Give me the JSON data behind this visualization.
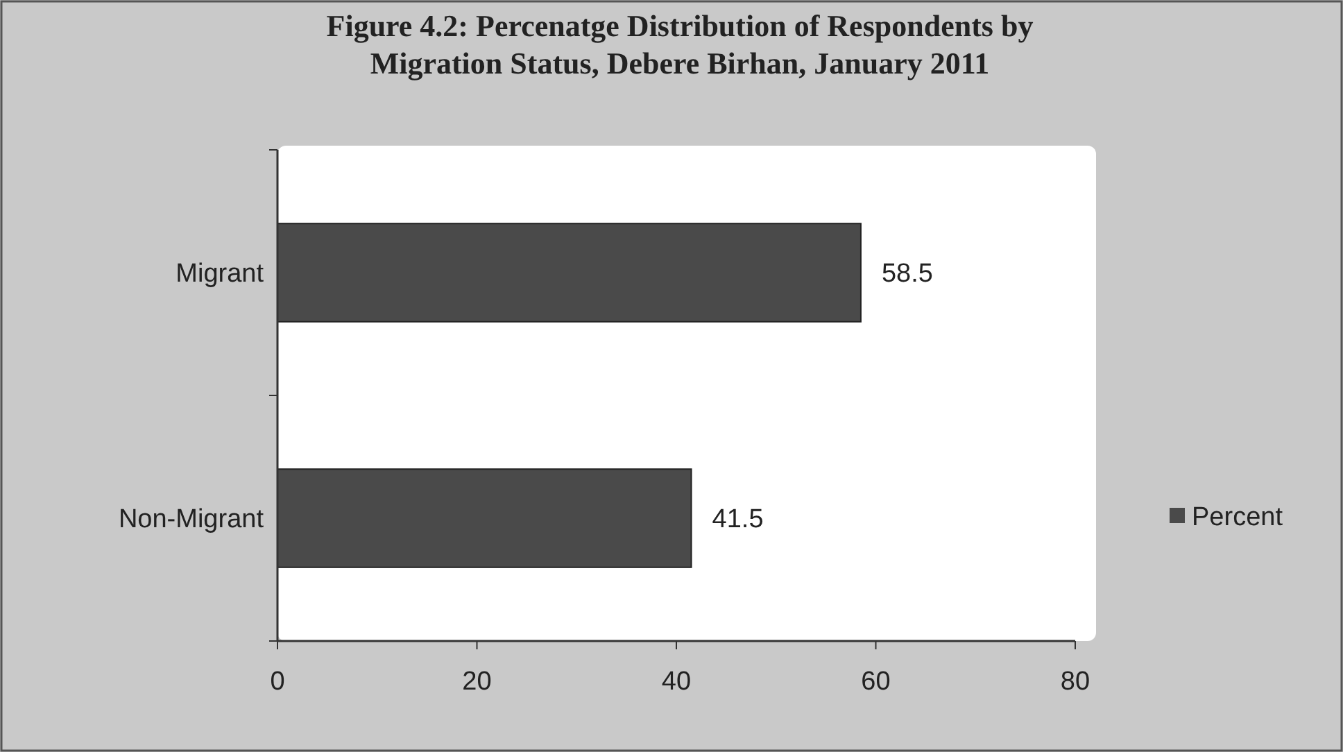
{
  "chart_data": {
    "type": "bar",
    "orientation": "horizontal",
    "title": "Figure 4.2: Percenatge Distribution of Respondents by\nMigration Status,  Debere Birhan, January 2011",
    "categories": [
      "Migrant",
      "Non-Migrant"
    ],
    "series": [
      {
        "name": "Percent",
        "color": "#4a4a4a",
        "values": [
          58.5,
          41.5
        ]
      }
    ],
    "xlim": [
      0,
      80
    ],
    "xticks": [
      0,
      20,
      40,
      60,
      80
    ],
    "data_labels": true,
    "legend": "right",
    "grid": false
  }
}
